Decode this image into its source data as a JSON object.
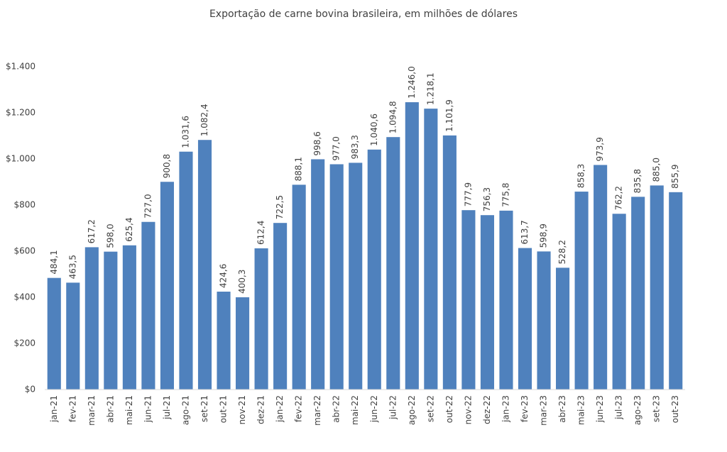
{
  "chart_data": {
    "type": "bar",
    "title": "Exportação de carne bovina brasileira, em milhões de dólares",
    "categories": [
      "jan-21",
      "fev-21",
      "mar-21",
      "abr-21",
      "mai-21",
      "jun-21",
      "jul-21",
      "ago-21",
      "set-21",
      "out-21",
      "nov-21",
      "dez-21",
      "jan-22",
      "fev-22",
      "mar-22",
      "abr-22",
      "mai-22",
      "jun-22",
      "jul-22",
      "ago-22",
      "set-22",
      "out-22",
      "nov-22",
      "dez-22",
      "jan-23",
      "fev-23",
      "mar-23",
      "abr-23",
      "mai-23",
      "jun-23",
      "jul-23",
      "ago-23",
      "set-23",
      "out-23"
    ],
    "values": [
      484.1,
      463.5,
      617.2,
      598.0,
      625.4,
      727.0,
      900.8,
      1031.6,
      1082.4,
      424.6,
      400.3,
      612.4,
      722.5,
      888.1,
      998.6,
      977.0,
      983.3,
      1040.6,
      1094.8,
      1246.0,
      1218.1,
      1101.9,
      777.9,
      756.3,
      775.8,
      613.7,
      598.9,
      528.2,
      858.3,
      973.9,
      762.2,
      835.8,
      885.0,
      855.9
    ],
    "value_labels": [
      "484,1",
      "463,5",
      "617,2",
      "598,0",
      "625,4",
      "727,0",
      "900,8",
      "1.031,6",
      "1.082,4",
      "424,6",
      "400,3",
      "612,4",
      "722,5",
      "888,1",
      "998,6",
      "977,0",
      "983,3",
      "1.040,6",
      "1.094,8",
      "1.246,0",
      "1.218,1",
      "1.101,9",
      "777,9",
      "756,3",
      "775,8",
      "613,7",
      "598,9",
      "528,2",
      "858,3",
      "973,9",
      "762,2",
      "835,8",
      "885,0",
      "855,9"
    ],
    "color": "#4f81bd",
    "ylim": [
      0,
      1400
    ],
    "yticks": [
      {
        "value": 0,
        "label": "$0"
      },
      {
        "value": 200,
        "label": "$200"
      },
      {
        "value": 400,
        "label": "$400"
      },
      {
        "value": 600,
        "label": "$600"
      },
      {
        "value": 800,
        "label": "$800"
      },
      {
        "value": 1000,
        "label": "$1.000"
      },
      {
        "value": 1200,
        "label": "$1.200"
      },
      {
        "value": 1400,
        "label": "$1.400"
      }
    ],
    "grid": false
  }
}
